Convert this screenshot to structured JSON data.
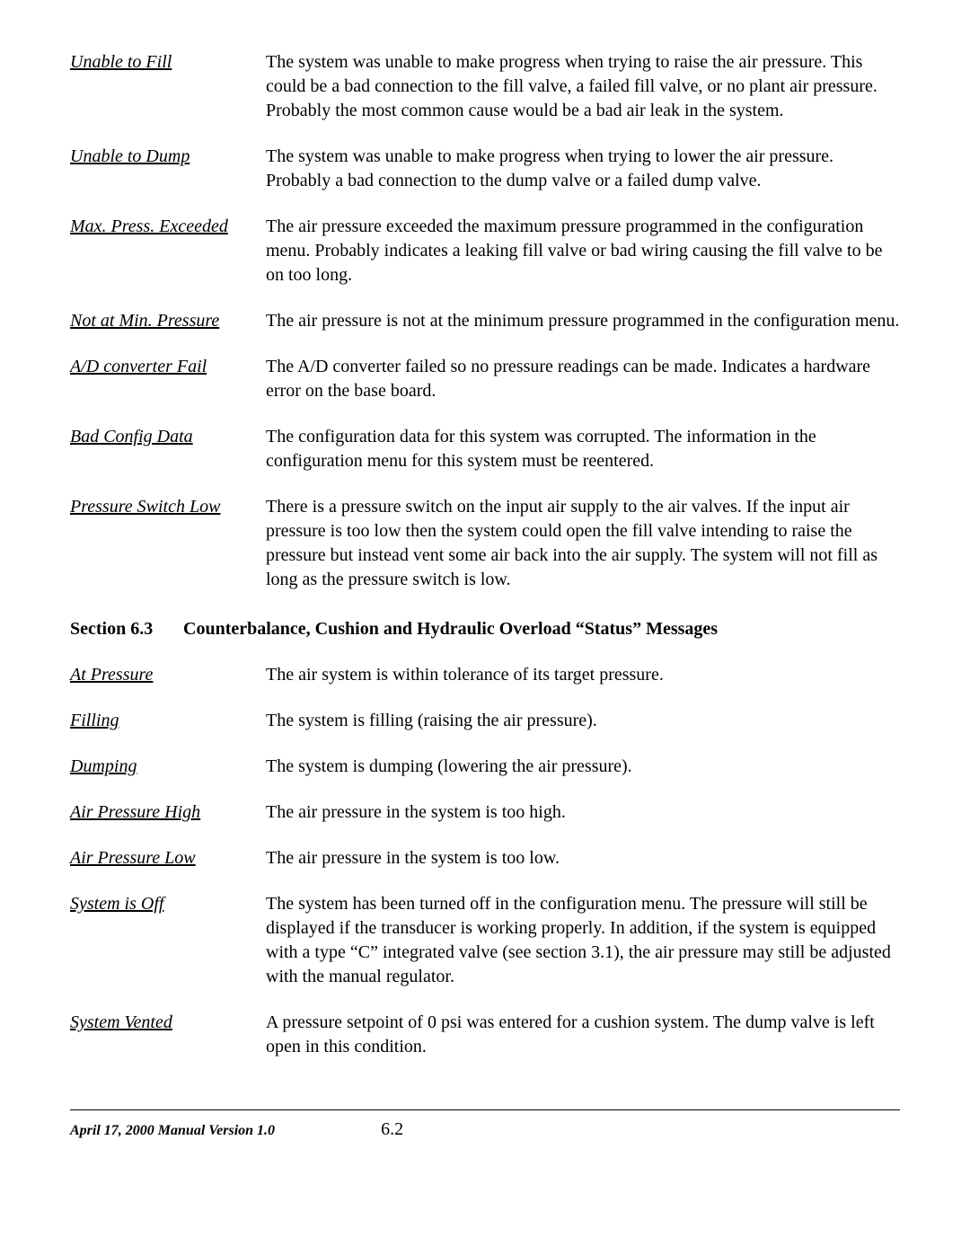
{
  "entries1": [
    {
      "term": "Unable to Fill",
      "desc": "The system was unable to make progress when trying to raise the air pressure.  This could be a bad connection to the fill valve, a failed fill valve, or no plant air pressure.  Probably the most common cause would be a bad air leak in the system."
    },
    {
      "term": "Unable to Dump",
      "desc": "The system was unable to make progress when trying to lower the air pressure.  Probably a bad connection to the dump valve or a failed dump valve."
    },
    {
      "term": "Max. Press. Exceeded",
      "desc": "The air pressure exceeded the maximum pressure programmed in the configuration menu.  Probably indicates a leaking fill valve or bad wiring causing the fill valve to be on too long."
    },
    {
      "term": "Not at Min. Pressure",
      "desc": "The air pressure is not at the minimum pressure programmed in the configuration menu."
    },
    {
      "term": "A/D converter Fail",
      "desc": "The A/D converter failed so no pressure readings can be made.  Indicates a hardware error on the base board."
    },
    {
      "term": "Bad Config Data",
      "desc": "The configuration data for this system was corrupted.  The information in the configuration menu for this system must be reentered."
    },
    {
      "term": "Pressure Switch Low",
      "desc": "There is a pressure switch on the input air supply to the air valves.  If the input air pressure is too low then the system could open the fill valve intending to raise the pressure but instead vent some air back into the air supply.  The system  will not fill as long as the pressure switch is low."
    }
  ],
  "section": {
    "label": "Section 6.3",
    "title": "Counterbalance, Cushion and Hydraulic Overload “Status” Messages"
  },
  "entries2": [
    {
      "term": "At Pressure",
      "desc": "The air system is within tolerance of its target pressure."
    },
    {
      "term": "Filling",
      "desc": "The system is filling (raising the air pressure)."
    },
    {
      "term": "Dumping",
      "desc": "The system is dumping (lowering the air pressure)."
    },
    {
      "term": "Air Pressure High",
      "desc": "The air pressure in the system is too high."
    },
    {
      "term": "Air Pressure Low",
      "desc": "The air pressure in the system is too low."
    },
    {
      "term": "System is Off",
      "desc": "The system has been turned off in the configuration menu.  The pressure will still be displayed if the transducer is working properly.  In addition, if the system is equipped with a type “C” integrated valve (see section 3.1), the air pressure may still be adjusted with the manual regulator."
    },
    {
      "term": "System Vented",
      "desc": "A pressure setpoint of 0 psi was entered for a cushion system.  The dump valve is left open in this condition."
    }
  ],
  "footer": {
    "left": "April 17, 2000    Manual Version 1.0",
    "page": "6.2"
  }
}
